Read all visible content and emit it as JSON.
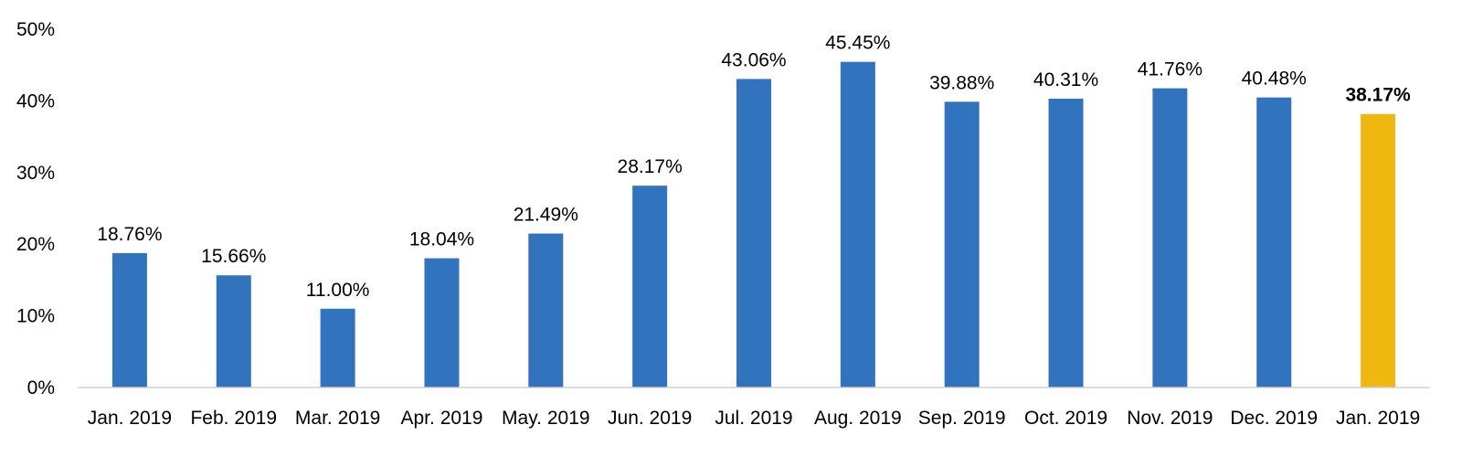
{
  "chart_data": {
    "type": "bar",
    "title": "",
    "xlabel": "",
    "ylabel": "",
    "categories": [
      "Jan. 2019",
      "Feb. 2019",
      "Mar. 2019",
      "Apr. 2019",
      "May. 2019",
      "Jun. 2019",
      "Jul. 2019",
      "Aug. 2019",
      "Sep. 2019",
      "Oct. 2019",
      "Nov. 2019",
      "Dec. 2019",
      "Jan. 2019"
    ],
    "values": [
      18.76,
      15.66,
      11.0,
      18.04,
      21.49,
      28.17,
      43.06,
      45.45,
      39.88,
      40.31,
      41.76,
      40.48,
      38.17
    ],
    "data_labels": [
      "18.76%",
      "15.66%",
      "11.00%",
      "18.04%",
      "21.49%",
      "28.17%",
      "43.06%",
      "45.45%",
      "39.88%",
      "40.31%",
      "41.76%",
      "40.48%",
      "38.17%"
    ],
    "ylim": [
      0,
      50
    ],
    "y_ticks": [
      0,
      10,
      20,
      30,
      40,
      50
    ],
    "y_tick_labels": [
      "0%",
      "10%",
      "20%",
      "30%",
      "40%",
      "50%"
    ],
    "unit": "%",
    "grid": false,
    "legend": "none",
    "highlight_index": 12,
    "colors": {
      "bar": "#3174BD",
      "highlight": "#F1B711",
      "highlight_label": "#F1B711",
      "text": "#000000"
    }
  }
}
